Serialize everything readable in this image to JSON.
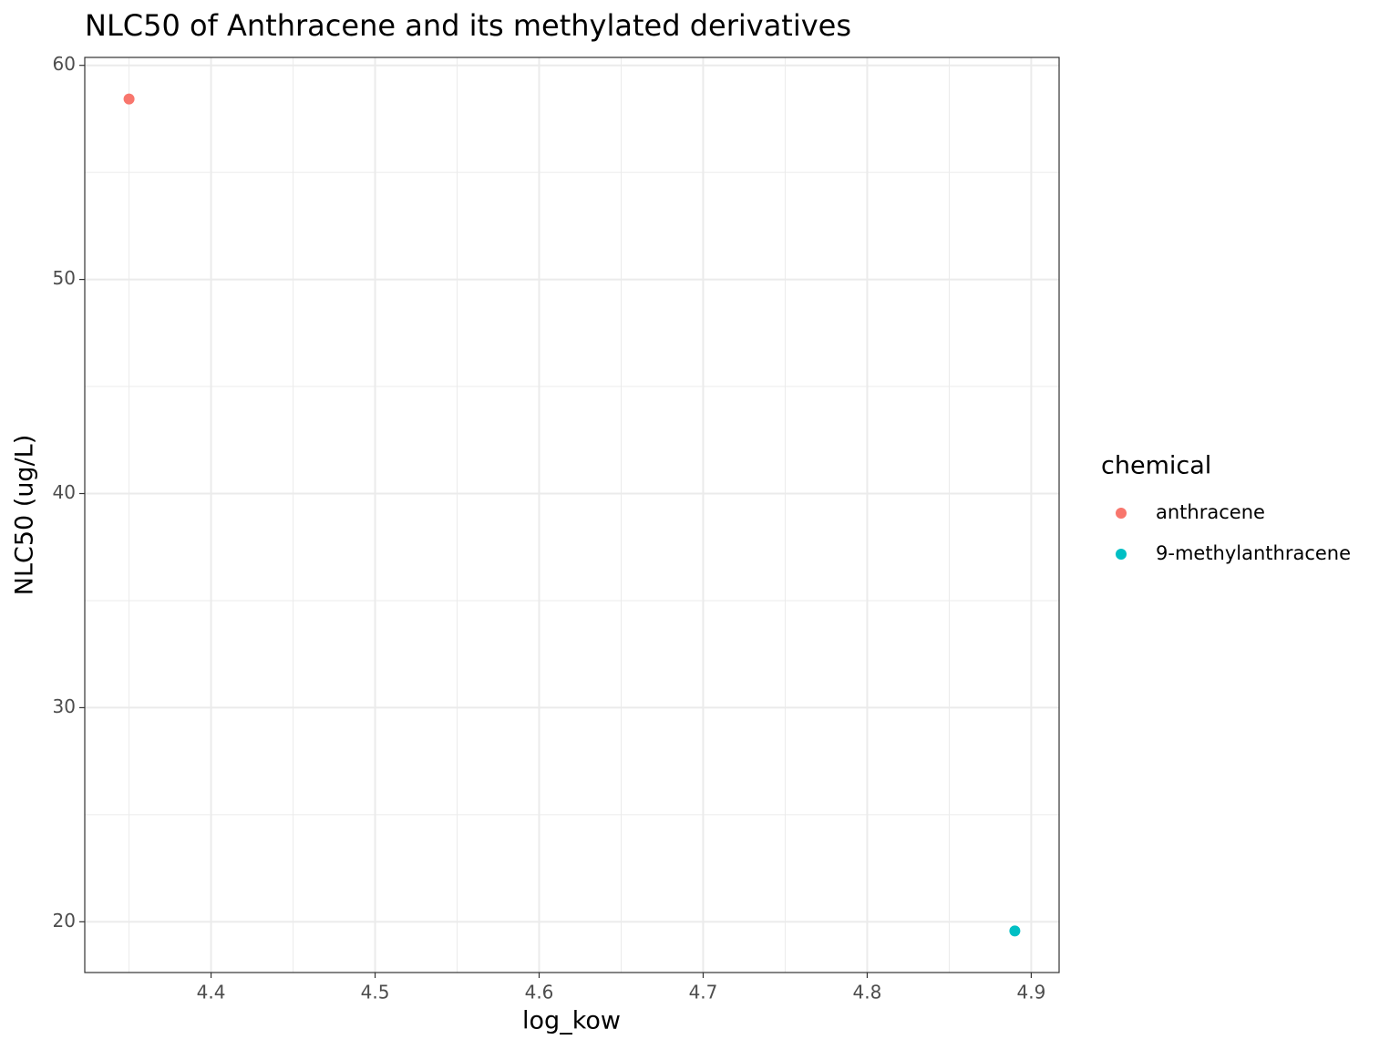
{
  "chart_data": {
    "type": "scatter",
    "title": "NLC50 of Anthracene and its methylated derivatives",
    "x_label": "log_kow",
    "y_label": "NLC50 (ug/L)",
    "legend_title": "chemical",
    "legend_position": "right",
    "series": [
      {
        "name": "anthracene",
        "color": "#F8766D",
        "x": [
          4.35
        ],
        "values": [
          58.43
        ]
      },
      {
        "name": "9-methylanthracene",
        "color": "#00BFC4",
        "x": [
          4.89
        ],
        "values": [
          19.57
        ]
      }
    ],
    "xlim": [
      4.323,
      4.917
    ],
    "xticks": [
      4.4,
      4.5,
      4.6,
      4.7,
      4.8,
      4.9
    ],
    "ylim": [
      17.63,
      60.37
    ],
    "yticks": [
      20,
      30,
      40,
      50,
      60
    ],
    "grid": true
  }
}
